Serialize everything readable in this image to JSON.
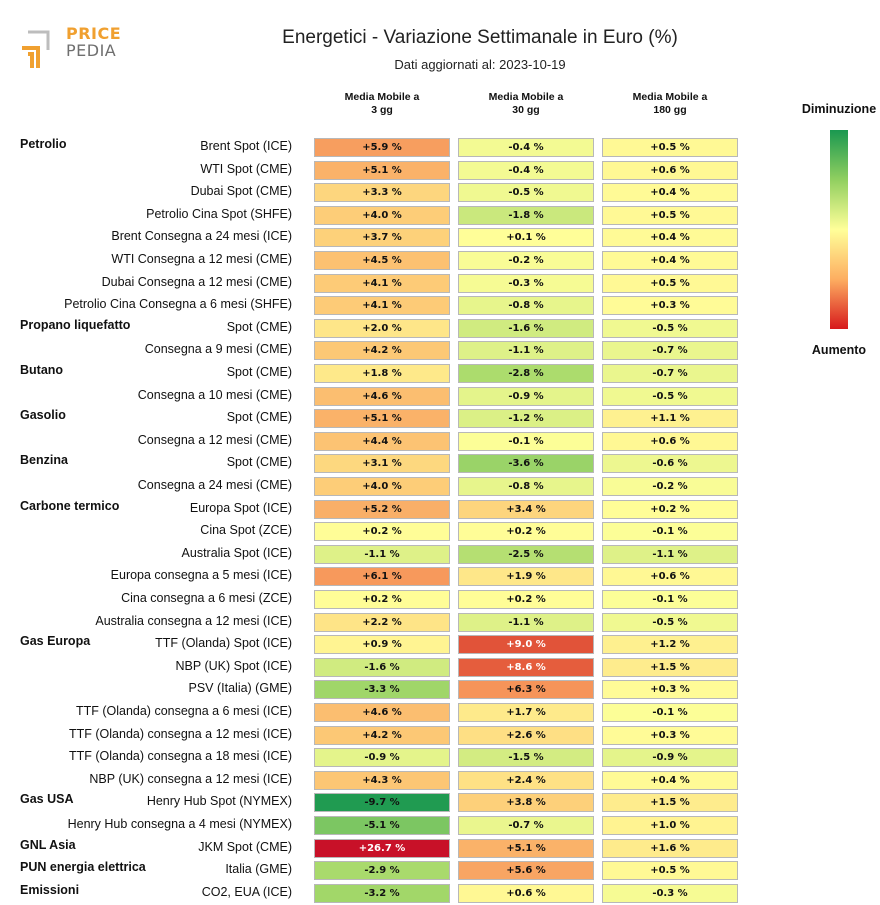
{
  "logo": {
    "line1": "PRICE",
    "line2": "PEDIA"
  },
  "title": "Energetici - Variazione Settimanale in Euro (%)",
  "subtitle": "Dati aggiornati al: 2023-10-19",
  "columns": [
    "Media Mobile a\n3 gg",
    "Media Mobile a\n30 gg",
    "Media Mobile a\n180 gg"
  ],
  "legend": {
    "top": "Diminuzione",
    "bottom": "Aumento",
    "colors": [
      "#1a9850",
      "#91cf60",
      "#ffff99",
      "#fdae61",
      "#d7191c"
    ]
  },
  "chart_data": {
    "type": "heatmap",
    "title": "Energetici - Variazione Settimanale in Euro (%)",
    "subtitle": "Dati aggiornati al: 2023-10-19",
    "columns": [
      "Media Mobile a 3 gg",
      "Media Mobile a 30 gg",
      "Media Mobile a 180 gg"
    ],
    "unit": "%",
    "rows": [
      {
        "group": "Petrolio",
        "label": "Brent Spot (ICE)",
        "values": [
          5.9,
          -0.4,
          0.5
        ]
      },
      {
        "group": "",
        "label": "WTI Spot (CME)",
        "values": [
          5.1,
          -0.4,
          0.6
        ]
      },
      {
        "group": "",
        "label": "Dubai Spot (CME)",
        "values": [
          3.3,
          -0.5,
          0.4
        ]
      },
      {
        "group": "",
        "label": "Petrolio Cina Spot (SHFE)",
        "values": [
          4.0,
          -1.8,
          0.5
        ]
      },
      {
        "group": "",
        "label": "Brent Consegna a 24 mesi (ICE)",
        "values": [
          3.7,
          0.1,
          0.4
        ]
      },
      {
        "group": "",
        "label": "WTI Consegna a 12 mesi (CME)",
        "values": [
          4.5,
          -0.2,
          0.4
        ]
      },
      {
        "group": "",
        "label": "Dubai Consegna a 12 mesi (CME)",
        "values": [
          4.1,
          -0.3,
          0.5
        ]
      },
      {
        "group": "",
        "label": "Petrolio Cina Consegna a 6 mesi (SHFE)",
        "values": [
          4.1,
          -0.8,
          0.3
        ]
      },
      {
        "group": "Propano liquefatto",
        "label": "Spot (CME)",
        "values": [
          2.0,
          -1.6,
          -0.5
        ]
      },
      {
        "group": "",
        "label": "Consegna a 9 mesi (CME)",
        "values": [
          4.2,
          -1.1,
          -0.7
        ]
      },
      {
        "group": "Butano",
        "label": "Spot (CME)",
        "values": [
          1.8,
          -2.8,
          -0.7
        ]
      },
      {
        "group": "",
        "label": "Consegna a 10 mesi (CME)",
        "values": [
          4.6,
          -0.9,
          -0.5
        ]
      },
      {
        "group": "Gasolio",
        "label": "Spot (CME)",
        "values": [
          5.1,
          -1.2,
          1.1
        ]
      },
      {
        "group": "",
        "label": "Consegna a 12 mesi (CME)",
        "values": [
          4.4,
          -0.1,
          0.6
        ]
      },
      {
        "group": "Benzina",
        "label": "Spot (CME)",
        "values": [
          3.1,
          -3.6,
          -0.6
        ]
      },
      {
        "group": "",
        "label": "Consegna a 24 mesi (CME)",
        "values": [
          4.0,
          -0.8,
          -0.2
        ]
      },
      {
        "group": "Carbone termico",
        "label": "Europa Spot (ICE)",
        "values": [
          5.2,
          3.4,
          0.2
        ]
      },
      {
        "group": "",
        "label": "Cina Spot (ZCE)",
        "values": [
          0.2,
          0.2,
          -0.1
        ]
      },
      {
        "group": "",
        "label": "Australia Spot (ICE)",
        "values": [
          -1.1,
          -2.5,
          -1.1
        ]
      },
      {
        "group": "",
        "label": "Europa consegna a 5 mesi (ICE)",
        "values": [
          6.1,
          1.9,
          0.6
        ]
      },
      {
        "group": "",
        "label": "Cina consegna a 6 mesi (ZCE)",
        "values": [
          0.2,
          0.2,
          -0.1
        ]
      },
      {
        "group": "",
        "label": "Australia consegna a 12 mesi (ICE)",
        "values": [
          2.2,
          -1.1,
          -0.5
        ]
      },
      {
        "group": "Gas Europa",
        "label": "TTF (Olanda) Spot (ICE)",
        "values": [
          0.9,
          9.0,
          1.2
        ]
      },
      {
        "group": "",
        "label": "NBP (UK) Spot (ICE)",
        "values": [
          -1.6,
          8.6,
          1.5
        ]
      },
      {
        "group": "",
        "label": "PSV (Italia) (GME)",
        "values": [
          -3.3,
          6.3,
          0.3
        ]
      },
      {
        "group": "",
        "label": "TTF (Olanda) consegna a 6 mesi (ICE)",
        "values": [
          4.6,
          1.7,
          -0.1
        ]
      },
      {
        "group": "",
        "label": "TTF (Olanda) consegna a 12 mesi (ICE)",
        "values": [
          4.2,
          2.6,
          0.3
        ]
      },
      {
        "group": "",
        "label": "TTF (Olanda) consegna a 18 mesi (ICE)",
        "values": [
          -0.9,
          -1.5,
          -0.9
        ]
      },
      {
        "group": "",
        "label": "NBP (UK) consegna a 12 mesi (ICE)",
        "values": [
          4.3,
          2.4,
          0.4
        ]
      },
      {
        "group": "Gas USA",
        "label": "Henry Hub Spot (NYMEX)",
        "values": [
          -9.7,
          3.8,
          1.5
        ]
      },
      {
        "group": "",
        "label": "Henry Hub consegna a 4 mesi (NYMEX)",
        "values": [
          -5.1,
          -0.7,
          1.0
        ]
      },
      {
        "group": "GNL Asia",
        "label": "JKM Spot (CME)",
        "values": [
          26.7,
          5.1,
          1.6
        ]
      },
      {
        "group": "PUN energia elettrica",
        "label": "Italia (GME)",
        "values": [
          -2.9,
          5.6,
          0.5
        ]
      },
      {
        "group": "Emissioni",
        "label": "CO2, EUA (ICE)",
        "values": [
          -3.2,
          0.6,
          -0.3
        ]
      }
    ]
  }
}
